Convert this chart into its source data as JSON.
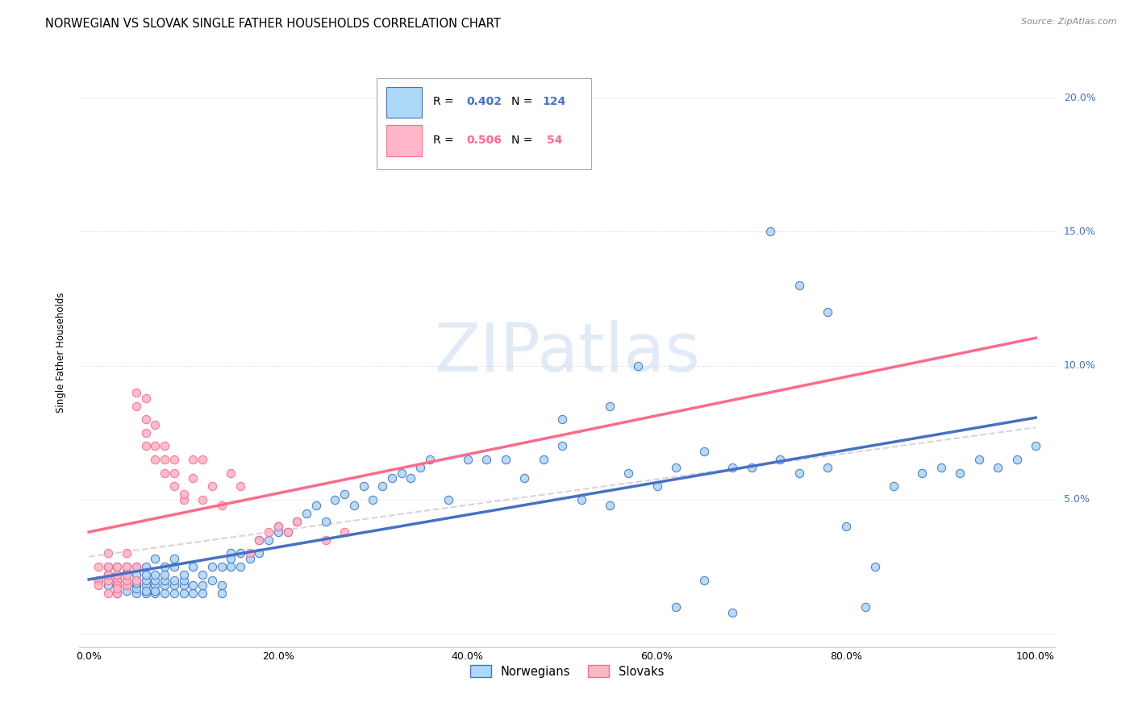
{
  "title": "NORWEGIAN VS SLOVAK SINGLE FATHER HOUSEHOLDS CORRELATION CHART",
  "source": "Source: ZipAtlas.com",
  "ylabel": "Single Father Households",
  "xlim": [
    -0.01,
    1.02
  ],
  "ylim": [
    -0.005,
    0.215
  ],
  "xticks": [
    0.0,
    0.2,
    0.4,
    0.6,
    0.8,
    1.0
  ],
  "yticks": [
    0.0,
    0.05,
    0.1,
    0.15,
    0.2
  ],
  "xtick_labels": [
    "0.0%",
    "20.0%",
    "40.0%",
    "60.0%",
    "80.0%",
    "100.0%"
  ],
  "ytick_labels_right": [
    "",
    "5.0%",
    "10.0%",
    "15.0%",
    "20.0%"
  ],
  "color_norwegian": "#ADD8F7",
  "color_norwegian_line": "#4472C4",
  "color_slovak": "#FFB6C8",
  "color_slovak_line": "#FF6B8A",
  "color_trendline": "#CCCCCC",
  "watermark_text": "ZIPatlas",
  "watermark_color": "#C5D8F0",
  "background_color": "#FFFFFF",
  "grid_color": "#E8E8E8",
  "title_fontsize": 10.5,
  "axis_label_fontsize": 8.5,
  "tick_fontsize": 9,
  "tick_color_right": "#4472C4",
  "nor_x": [
    0.01,
    0.02,
    0.02,
    0.02,
    0.03,
    0.03,
    0.03,
    0.03,
    0.03,
    0.04,
    0.04,
    0.04,
    0.04,
    0.04,
    0.04,
    0.05,
    0.05,
    0.05,
    0.05,
    0.05,
    0.05,
    0.05,
    0.06,
    0.06,
    0.06,
    0.06,
    0.06,
    0.06,
    0.07,
    0.07,
    0.07,
    0.07,
    0.07,
    0.07,
    0.08,
    0.08,
    0.08,
    0.08,
    0.08,
    0.09,
    0.09,
    0.09,
    0.09,
    0.09,
    0.1,
    0.1,
    0.1,
    0.1,
    0.11,
    0.11,
    0.11,
    0.12,
    0.12,
    0.12,
    0.13,
    0.13,
    0.14,
    0.14,
    0.14,
    0.15,
    0.15,
    0.15,
    0.16,
    0.16,
    0.17,
    0.18,
    0.18,
    0.19,
    0.2,
    0.2,
    0.21,
    0.22,
    0.23,
    0.24,
    0.25,
    0.26,
    0.27,
    0.28,
    0.29,
    0.3,
    0.31,
    0.32,
    0.33,
    0.34,
    0.35,
    0.36,
    0.38,
    0.4,
    0.42,
    0.44,
    0.46,
    0.48,
    0.5,
    0.52,
    0.55,
    0.57,
    0.6,
    0.62,
    0.65,
    0.68,
    0.7,
    0.73,
    0.75,
    0.78,
    0.8,
    0.83,
    0.85,
    0.88,
    0.9,
    0.92,
    0.94,
    0.96,
    0.98,
    1.0,
    0.5,
    0.55,
    0.58,
    0.62,
    0.65,
    0.68,
    0.72,
    0.75,
    0.78,
    0.82
  ],
  "nor_y": [
    0.02,
    0.022,
    0.018,
    0.025,
    0.02,
    0.022,
    0.025,
    0.018,
    0.015,
    0.018,
    0.02,
    0.023,
    0.025,
    0.022,
    0.016,
    0.015,
    0.018,
    0.02,
    0.022,
    0.025,
    0.017,
    0.019,
    0.015,
    0.018,
    0.02,
    0.022,
    0.025,
    0.016,
    0.015,
    0.018,
    0.02,
    0.022,
    0.028,
    0.016,
    0.015,
    0.018,
    0.02,
    0.022,
    0.025,
    0.015,
    0.018,
    0.02,
    0.025,
    0.028,
    0.015,
    0.018,
    0.02,
    0.022,
    0.015,
    0.018,
    0.025,
    0.015,
    0.018,
    0.022,
    0.02,
    0.025,
    0.015,
    0.018,
    0.025,
    0.025,
    0.03,
    0.028,
    0.03,
    0.025,
    0.028,
    0.035,
    0.03,
    0.035,
    0.04,
    0.038,
    0.038,
    0.042,
    0.045,
    0.048,
    0.042,
    0.05,
    0.052,
    0.048,
    0.055,
    0.05,
    0.055,
    0.058,
    0.06,
    0.058,
    0.062,
    0.065,
    0.05,
    0.065,
    0.065,
    0.065,
    0.058,
    0.065,
    0.07,
    0.05,
    0.048,
    0.06,
    0.055,
    0.062,
    0.068,
    0.062,
    0.062,
    0.065,
    0.06,
    0.062,
    0.04,
    0.025,
    0.055,
    0.06,
    0.062,
    0.06,
    0.065,
    0.062,
    0.065,
    0.07,
    0.08,
    0.085,
    0.1,
    0.01,
    0.02,
    0.008,
    0.15,
    0.13,
    0.12,
    0.01
  ],
  "slo_x": [
    0.01,
    0.01,
    0.01,
    0.02,
    0.02,
    0.02,
    0.02,
    0.02,
    0.03,
    0.03,
    0.03,
    0.03,
    0.03,
    0.03,
    0.04,
    0.04,
    0.04,
    0.04,
    0.04,
    0.05,
    0.05,
    0.05,
    0.05,
    0.06,
    0.06,
    0.06,
    0.06,
    0.07,
    0.07,
    0.07,
    0.08,
    0.08,
    0.08,
    0.09,
    0.09,
    0.09,
    0.1,
    0.1,
    0.11,
    0.11,
    0.12,
    0.12,
    0.13,
    0.14,
    0.15,
    0.16,
    0.17,
    0.18,
    0.19,
    0.2,
    0.21,
    0.22,
    0.25,
    0.27
  ],
  "slo_y": [
    0.02,
    0.025,
    0.018,
    0.025,
    0.03,
    0.02,
    0.022,
    0.015,
    0.02,
    0.022,
    0.025,
    0.018,
    0.015,
    0.017,
    0.018,
    0.02,
    0.025,
    0.03,
    0.022,
    0.02,
    0.025,
    0.085,
    0.09,
    0.08,
    0.088,
    0.075,
    0.07,
    0.065,
    0.07,
    0.078,
    0.06,
    0.065,
    0.07,
    0.055,
    0.06,
    0.065,
    0.05,
    0.052,
    0.058,
    0.065,
    0.065,
    0.05,
    0.055,
    0.048,
    0.06,
    0.055,
    0.03,
    0.035,
    0.038,
    0.04,
    0.038,
    0.042,
    0.035,
    0.038
  ]
}
